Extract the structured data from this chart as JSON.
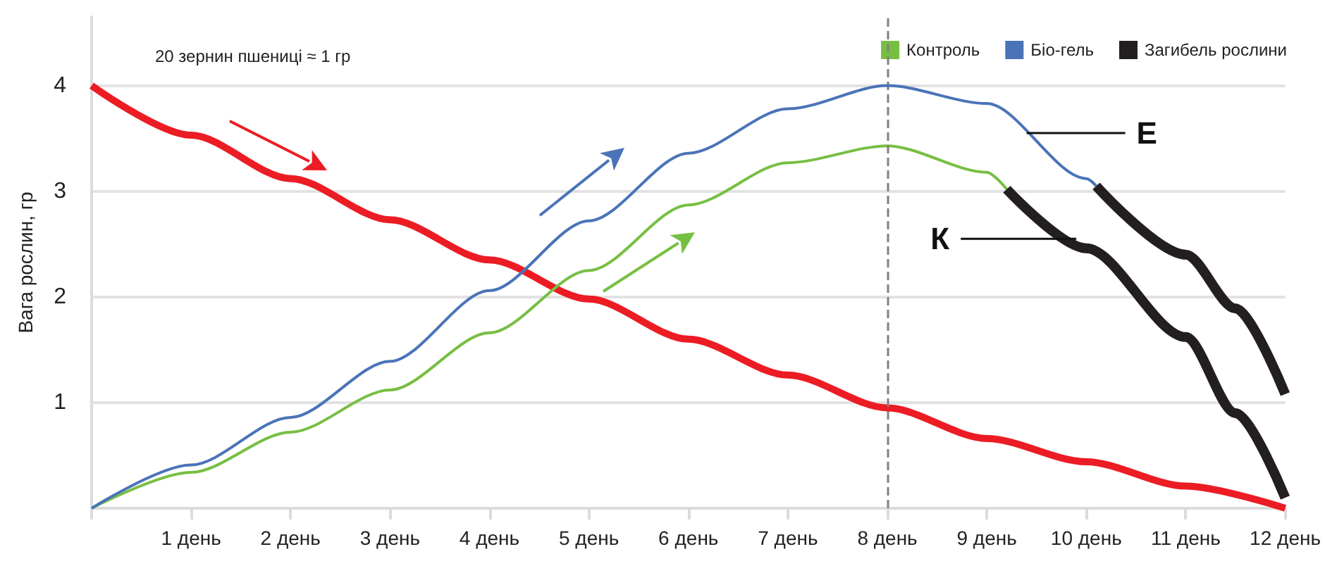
{
  "chart_data": {
    "type": "line",
    "ylabel": "Вага рослин, гр",
    "annotations": [
      "20 зернин пшениці ≈ 1 гр",
      {
        "text": "Е",
        "x": 9.4,
        "y": 3.55
      },
      {
        "text": "К",
        "x": 9.9,
        "y": 2.55
      }
    ],
    "xlim": [
      0,
      12
    ],
    "xticks": [
      {
        "value": 0,
        "label": null
      },
      {
        "value": 1,
        "label": "1 день"
      },
      {
        "value": 2,
        "label": "2 день"
      },
      {
        "value": 3,
        "label": "3 день"
      },
      {
        "value": 4,
        "label": "4 день"
      },
      {
        "value": 5,
        "label": "5 день"
      },
      {
        "value": 6,
        "label": "6 день"
      },
      {
        "value": 7,
        "label": "7 день"
      },
      {
        "value": 8,
        "label": "8 день"
      },
      {
        "value": 9,
        "label": "9 день"
      },
      {
        "value": 10,
        "label": "10 день"
      },
      {
        "value": 11,
        "label": "11 день"
      },
      {
        "value": 12,
        "label": "12 день"
      }
    ],
    "ylim": [
      0,
      4.65
    ],
    "yticks": [
      {
        "value": 0,
        "label": null
      },
      1,
      2,
      3,
      4
    ],
    "series": [
      {
        "color": "#ec1c24",
        "x": [
          0,
          1,
          2,
          3,
          4,
          5,
          6,
          7,
          8,
          9,
          10,
          11,
          12
        ],
        "values": [
          4,
          3.53,
          3.12,
          2.73,
          2.35,
          1.98,
          1.6,
          1.26,
          0.95,
          0.66,
          0.44,
          0.21,
          0
        ]
      },
      {
        "name": "Контроль",
        "color": "#77bf43",
        "x": [
          0,
          1,
          2,
          3,
          4,
          5,
          6,
          7,
          8,
          9,
          9.2
        ],
        "values": [
          0,
          0.34,
          0.72,
          1.12,
          1.66,
          2.25,
          2.87,
          3.27,
          3.43,
          3.18,
          3.02
        ]
      },
      {
        "name": "Біо-гель",
        "color": "#4a73b8",
        "x": [
          0,
          1,
          2,
          3,
          4,
          5,
          6,
          7,
          8,
          9,
          10,
          10.1
        ],
        "values": [
          0,
          0.41,
          0.86,
          1.39,
          2.06,
          2.72,
          3.36,
          3.78,
          4,
          3.83,
          3.12,
          3.05
        ]
      },
      {
        "name": "Загибель рослини",
        "color": "#231f20",
        "x": [
          9.2,
          10,
          11,
          11.5,
          12
        ],
        "values": [
          3.02,
          2.46,
          1.62,
          0.9,
          0.1
        ]
      },
      {
        "color": "#231f20",
        "x": [
          10.1,
          11,
          11.5,
          12
        ],
        "values": [
          3.05,
          2.4,
          1.89,
          1.08
        ]
      }
    ],
    "ref_lines": [
      {
        "axis": "x",
        "value": 8,
        "color": "#808080",
        "line_style": "dashed"
      }
    ],
    "grid": "y",
    "legend": "top right",
    "marker": "none",
    "line_style": "solid"
  }
}
